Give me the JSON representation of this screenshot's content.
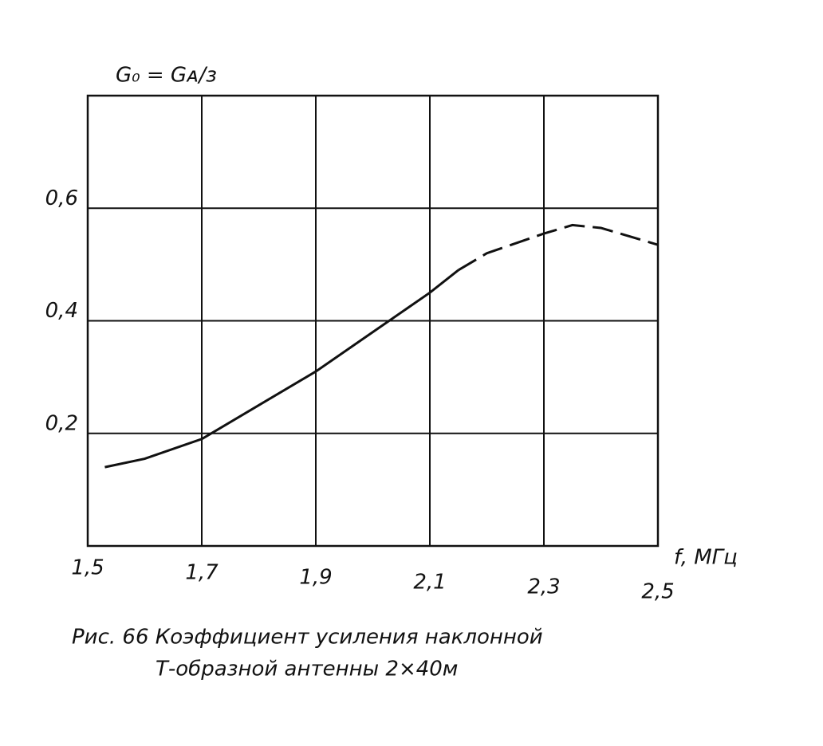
{
  "chart_data": {
    "type": "line",
    "y_label": "G₀ = Gᴀ/з",
    "x_label": "f, МГц",
    "caption": [
      "Рис. 66 Коэффициент усиления наклонной",
      "Т-образной антенны 2×40м"
    ],
    "xlim": [
      1.5,
      2.5
    ],
    "ylim": [
      0,
      0.8
    ],
    "xticks": [
      {
        "value": 1.5,
        "label": "1,5"
      },
      {
        "value": 1.7,
        "label": "1,7"
      },
      {
        "value": 1.9,
        "label": "1,9"
      },
      {
        "value": 2.1,
        "label": "2,1"
      },
      {
        "value": 2.3,
        "label": "2,3"
      },
      {
        "value": 2.5,
        "label": "2,5"
      }
    ],
    "yticks": [
      {
        "value": 0.2,
        "label": "0,2"
      },
      {
        "value": 0.4,
        "label": "0,4"
      },
      {
        "value": 0.6,
        "label": "0,6"
      }
    ],
    "grid": true,
    "series": [
      {
        "color": "#111111",
        "style": "solid",
        "x": [
          1.53,
          1.6,
          1.7,
          1.8,
          1.9,
          2.0,
          2.1,
          2.15
        ],
        "values": [
          0.14,
          0.155,
          0.19,
          0.25,
          0.31,
          0.38,
          0.45,
          0.49
        ]
      },
      {
        "color": "#111111",
        "style": "dashed",
        "x": [
          2.15,
          2.2,
          2.3,
          2.35,
          2.4,
          2.5
        ],
        "values": [
          0.49,
          0.52,
          0.555,
          0.57,
          0.565,
          0.535
        ]
      }
    ]
  }
}
